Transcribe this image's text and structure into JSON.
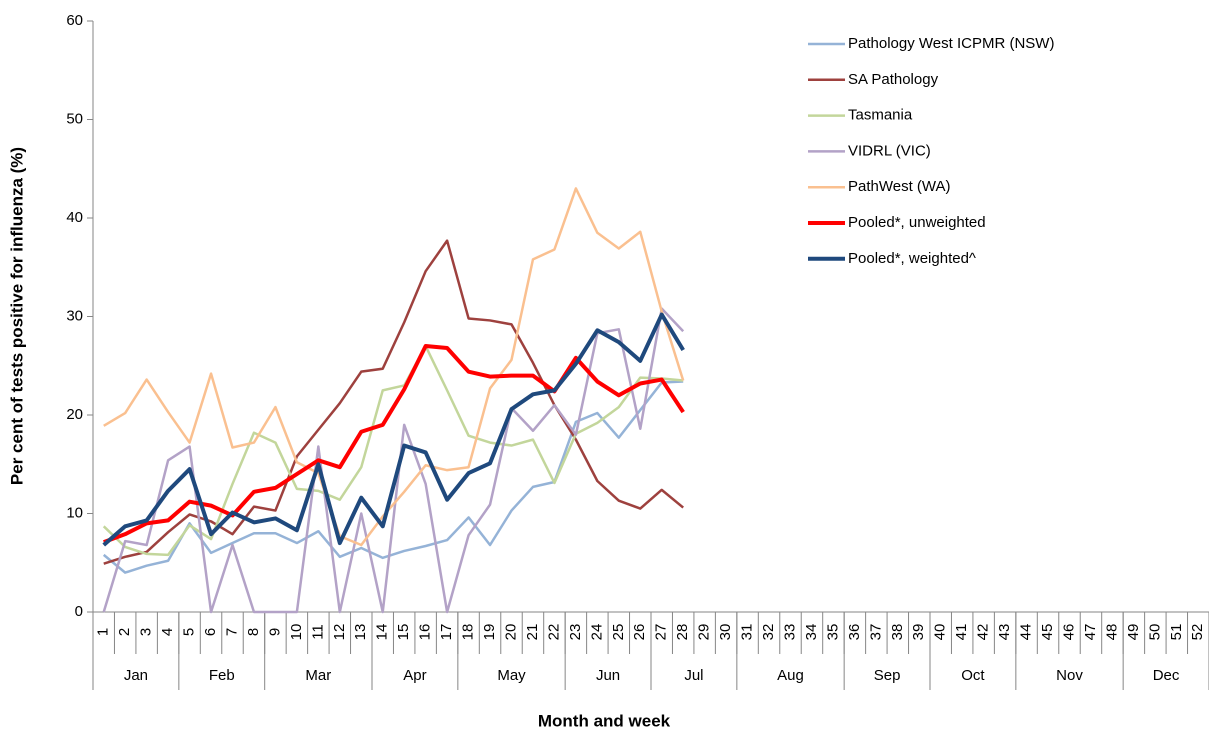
{
  "chart_data": {
    "type": "line",
    "y_label": "Per cent of tests positive for influenza (%)",
    "x_label": "Month and week",
    "categories": [
      "1",
      "2",
      "3",
      "4",
      "5",
      "6",
      "7",
      "8",
      "9",
      "10",
      "11",
      "12",
      "13",
      "14",
      "15",
      "16",
      "17",
      "18",
      "19",
      "20",
      "21",
      "22",
      "23",
      "24",
      "25",
      "26",
      "27",
      "28",
      "29",
      "30",
      "31",
      "32",
      "33",
      "34",
      "35",
      "36",
      "37",
      "38",
      "39",
      "40",
      "41",
      "42",
      "43",
      "44",
      "45",
      "46",
      "47",
      "48",
      "49",
      "50",
      "51",
      "52"
    ],
    "month_groups": [
      {
        "label": "Jan",
        "weeks": 4
      },
      {
        "label": "Feb",
        "weeks": 4
      },
      {
        "label": "Mar",
        "weeks": 5
      },
      {
        "label": "Apr",
        "weeks": 4
      },
      {
        "label": "May",
        "weeks": 5
      },
      {
        "label": "Jun",
        "weeks": 4
      },
      {
        "label": "Jul",
        "weeks": 4
      },
      {
        "label": "Aug",
        "weeks": 5
      },
      {
        "label": "Sep",
        "weeks": 4
      },
      {
        "label": "Oct",
        "weeks": 4
      },
      {
        "label": "Nov",
        "weeks": 5
      },
      {
        "label": "Dec",
        "weeks": 4
      }
    ],
    "ylim": [
      0,
      60
    ],
    "yticks": [
      0,
      10,
      20,
      30,
      40,
      50,
      60
    ],
    "grid": false,
    "legend": "right",
    "series": [
      {
        "name": "Pathology West ICPMR (NSW)",
        "color": "#95b3d7",
        "width": 2.5,
        "values": [
          5.8,
          4,
          4.7,
          5.2,
          9,
          6,
          7,
          8,
          8,
          7,
          8.2,
          5.6,
          6.5,
          5.5,
          6.2,
          6.7,
          7.3,
          9.6,
          6.8,
          10.3,
          12.7,
          13.2,
          19.3,
          20.2,
          17.7,
          20.5,
          23.3,
          23.4,
          null,
          null,
          null,
          null,
          null,
          null,
          null,
          null,
          null,
          null,
          null,
          null,
          null,
          null,
          null,
          null,
          null,
          null,
          null,
          null,
          null,
          null,
          null,
          null
        ]
      },
      {
        "name": "SA Pathology",
        "color": "#9e413e",
        "width": 2.5,
        "values": [
          4.9,
          5.6,
          6.1,
          8.1,
          9.9,
          9.2,
          7.9,
          10.7,
          10.3,
          15.8,
          18.5,
          21.2,
          24.4,
          24.7,
          29.4,
          34.6,
          37.7,
          29.8,
          29.6,
          29.2,
          25.3,
          21,
          17.5,
          13.3,
          11.3,
          10.5,
          12.4,
          10.6,
          null,
          null,
          null,
          null,
          null,
          null,
          null,
          null,
          null,
          null,
          null,
          null,
          null,
          null,
          null,
          null,
          null,
          null,
          null,
          null,
          null,
          null,
          null,
          null
        ]
      },
      {
        "name": "Tasmania",
        "color": "#c3d69b",
        "width": 2.5,
        "values": [
          8.7,
          6.6,
          5.9,
          5.8,
          8.8,
          7.4,
          13,
          18.2,
          17.2,
          12.5,
          12.3,
          11.4,
          14.7,
          22.5,
          23,
          27,
          22.5,
          17.9,
          17.2,
          16.9,
          17.5,
          13.1,
          18.1,
          19.2,
          20.8,
          23.8,
          23.7,
          23.5,
          null,
          null,
          null,
          null,
          null,
          null,
          null,
          null,
          null,
          null,
          null,
          null,
          null,
          null,
          null,
          null,
          null,
          null,
          null,
          null,
          null,
          null,
          null,
          null
        ]
      },
      {
        "name": "VIDRL (VIC)",
        "color": "#b3a2c7",
        "width": 2.5,
        "values": [
          0,
          7.2,
          6.8,
          15.4,
          16.8,
          0,
          6.8,
          0,
          0,
          0,
          16.8,
          0,
          10,
          0,
          19,
          13,
          0,
          7.8,
          10.9,
          20.7,
          18.4,
          21,
          18,
          28.3,
          28.7,
          18.6,
          30.8,
          28.5,
          null,
          null,
          null,
          null,
          null,
          null,
          null,
          null,
          null,
          null,
          null,
          null,
          null,
          null,
          null,
          null,
          null,
          null,
          null,
          null,
          null,
          null,
          null,
          null
        ]
      },
      {
        "name": "PathWest (WA)",
        "color": "#fac090",
        "width": 2.5,
        "values": [
          18.9,
          20.2,
          23.6,
          20.3,
          17.2,
          24.2,
          16.7,
          17.2,
          20.8,
          15.2,
          14.1,
          7.7,
          6.8,
          9.7,
          12.2,
          14.9,
          14.4,
          14.7,
          22.7,
          25.6,
          35.8,
          36.8,
          43,
          38.5,
          36.9,
          38.6,
          30.5,
          23.5,
          null,
          null,
          null,
          null,
          null,
          null,
          null,
          null,
          null,
          null,
          null,
          null,
          null,
          null,
          null,
          null,
          null,
          null,
          null,
          null,
          null,
          null,
          null,
          null
        ]
      },
      {
        "name": "Pooled*, unweighted",
        "color": "#ff0000",
        "width": 4,
        "values": [
          7.1,
          7.9,
          9,
          9.3,
          11.2,
          10.8,
          9.8,
          12.2,
          12.6,
          14,
          15.4,
          14.7,
          18.3,
          19,
          22.6,
          27,
          26.8,
          24.4,
          23.9,
          24,
          24,
          22.4,
          25.8,
          23.4,
          22,
          23.2,
          23.6,
          20.3,
          null,
          null,
          null,
          null,
          null,
          null,
          null,
          null,
          null,
          null,
          null,
          null,
          null,
          null,
          null,
          null,
          null,
          null,
          null,
          null,
          null,
          null,
          null,
          null
        ]
      },
      {
        "name": "Pooled*, weighted^",
        "color": "#1f497d",
        "width": 4,
        "values": [
          6.8,
          8.7,
          9.3,
          12.3,
          14.5,
          7.9,
          10.1,
          9.1,
          9.5,
          8.3,
          15,
          7,
          11.6,
          8.7,
          16.9,
          16.2,
          11.4,
          14.1,
          15.1,
          20.6,
          22.1,
          22.5,
          25.2,
          28.6,
          27.4,
          25.5,
          30.2,
          26.6,
          null,
          null,
          null,
          null,
          null,
          null,
          null,
          null,
          null,
          null,
          null,
          null,
          null,
          null,
          null,
          null,
          null,
          null,
          null,
          null,
          null,
          null,
          null,
          null
        ]
      }
    ]
  }
}
